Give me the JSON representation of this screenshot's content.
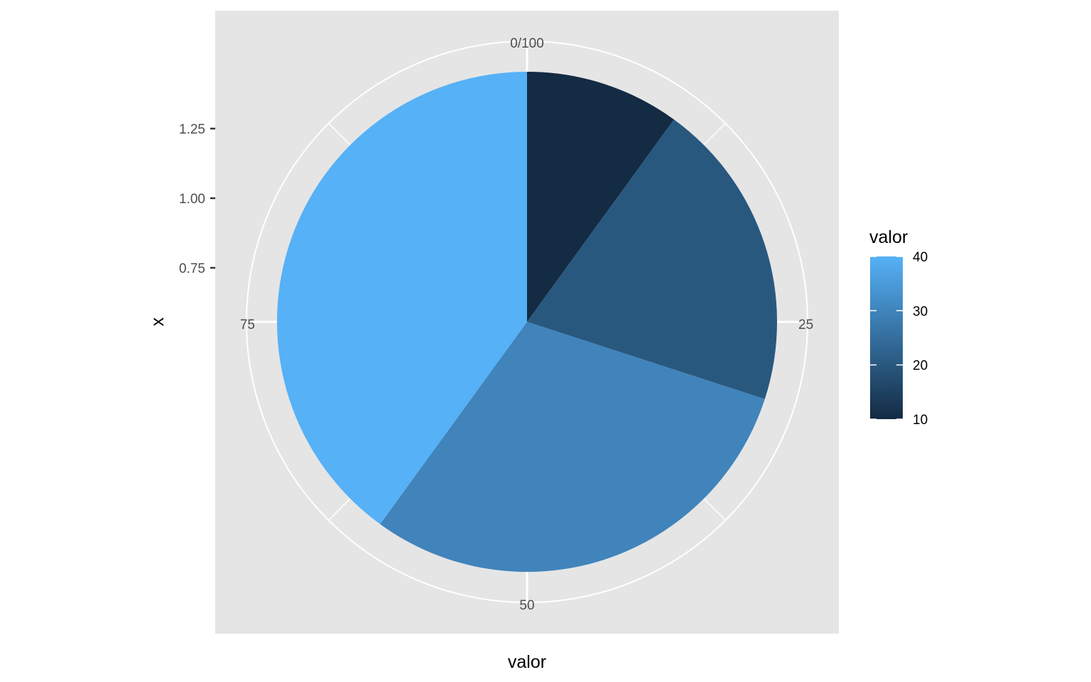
{
  "chart_data": {
    "type": "pie",
    "coord": "polar",
    "xlabel": "valor",
    "ylabel": "x",
    "slices": [
      {
        "value": 10
      },
      {
        "value": 20
      },
      {
        "value": 30
      },
      {
        "value": 40
      }
    ],
    "theta_ticks": [
      "0/100",
      "25",
      "50",
      "75"
    ],
    "theta_tick_values": [
      0,
      25,
      50,
      75
    ],
    "y_ticks": [
      "0.75",
      "1.00",
      "1.25"
    ],
    "y_tick_values": [
      0.75,
      1.0,
      1.25
    ],
    "legend": {
      "title": "valor",
      "labels": [
        "40",
        "30",
        "20",
        "10"
      ],
      "values": [
        40,
        30,
        20,
        10
      ],
      "low_color": "#132B43",
      "high_color": "#56B1F7",
      "range": [
        10,
        40
      ],
      "placement": "right"
    },
    "panel_background": "#E5E5E5",
    "grid": true
  }
}
